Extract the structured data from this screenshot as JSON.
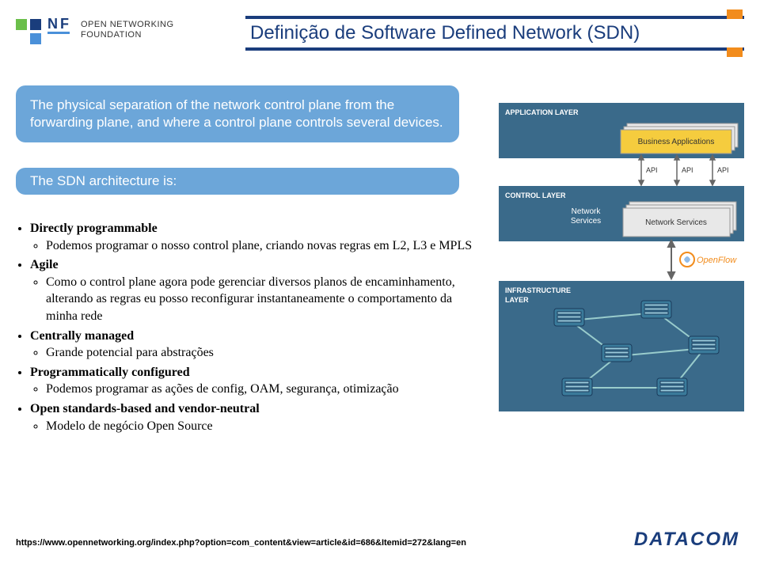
{
  "brand": {
    "logo_line1": "OPEN NETWORKING",
    "logo_line2": "FOUNDATION",
    "logo_colors": {
      "green": "#6bbf4a",
      "blue_dark": "#1a3d7c",
      "blue_light": "#4a90d9"
    }
  },
  "title": {
    "text": "Definição de Software Defined Network (SDN)",
    "color": "#1a3d7c",
    "border_color": "#1a3d7c",
    "accent_color": "#f28c1c",
    "fontsize": 24
  },
  "box1": {
    "text": "The physical separation of the network control plane from the forwarding plane, and where a control plane controls several devices.",
    "bg": "#6ca6d9",
    "fg": "#ffffff",
    "fontsize": 17
  },
  "box2": {
    "text": "The SDN architecture is:",
    "bg": "#6ca6d9",
    "fg": "#ffffff",
    "fontsize": 17
  },
  "bullets": {
    "font": "Times New Roman",
    "fontsize": 16,
    "items": [
      {
        "label": "Directly programmable",
        "bold": true,
        "children": [
          {
            "label": "Podemos programar o nosso control plane, criando novas regras em L2, L3 e MPLS",
            "bold": false
          }
        ]
      },
      {
        "label": "Agile",
        "bold": true,
        "children": [
          {
            "label": "Como o control plane agora pode gerenciar diversos planos de encaminhamento, alterando as regras eu posso reconfigurar instantaneamente o comportamento da minha rede",
            "bold": false
          }
        ]
      },
      {
        "label": "Centrally managed",
        "bold": true,
        "children": [
          {
            "label": "Grande potencial para abstrações",
            "bold": false
          }
        ]
      },
      {
        "label": "Programmatically configured",
        "bold": true,
        "children": [
          {
            "label": "Podemos programar as ações de config, OAM, segurança, otimização",
            "bold": false
          }
        ]
      },
      {
        "label": "Open standards-based and vendor-neutral",
        "bold": true,
        "children": [
          {
            "label": "Modelo de negócio Open Source",
            "bold": false
          }
        ]
      }
    ]
  },
  "diagram": {
    "bg": "#dfeaf0",
    "layer_bg": "#3a6a8a",
    "layers": {
      "app": {
        "label": "APPLICATION LAYER"
      },
      "control": {
        "label": "CONTROL LAYER"
      },
      "infra": {
        "label": "INFRASTRUCTURE LAYER"
      }
    },
    "app_boxes": {
      "label": "Business Applications",
      "color": "#f5cc3e"
    },
    "api_label": "API",
    "control_boxes": {
      "left_label": "Network Services",
      "right_label": "Network Services"
    },
    "openflow_label": "OpenFlow",
    "openflow_color": "#f28c1c",
    "switch_color": "#3a6a8a",
    "line_color": "#666666"
  },
  "footer": {
    "url": "https://www.opennetworking.org/index.php?option=com_content&view=article&id=686&Itemid=272&lang=en",
    "company": "DATACOM",
    "company_color": "#1a3d7c"
  }
}
